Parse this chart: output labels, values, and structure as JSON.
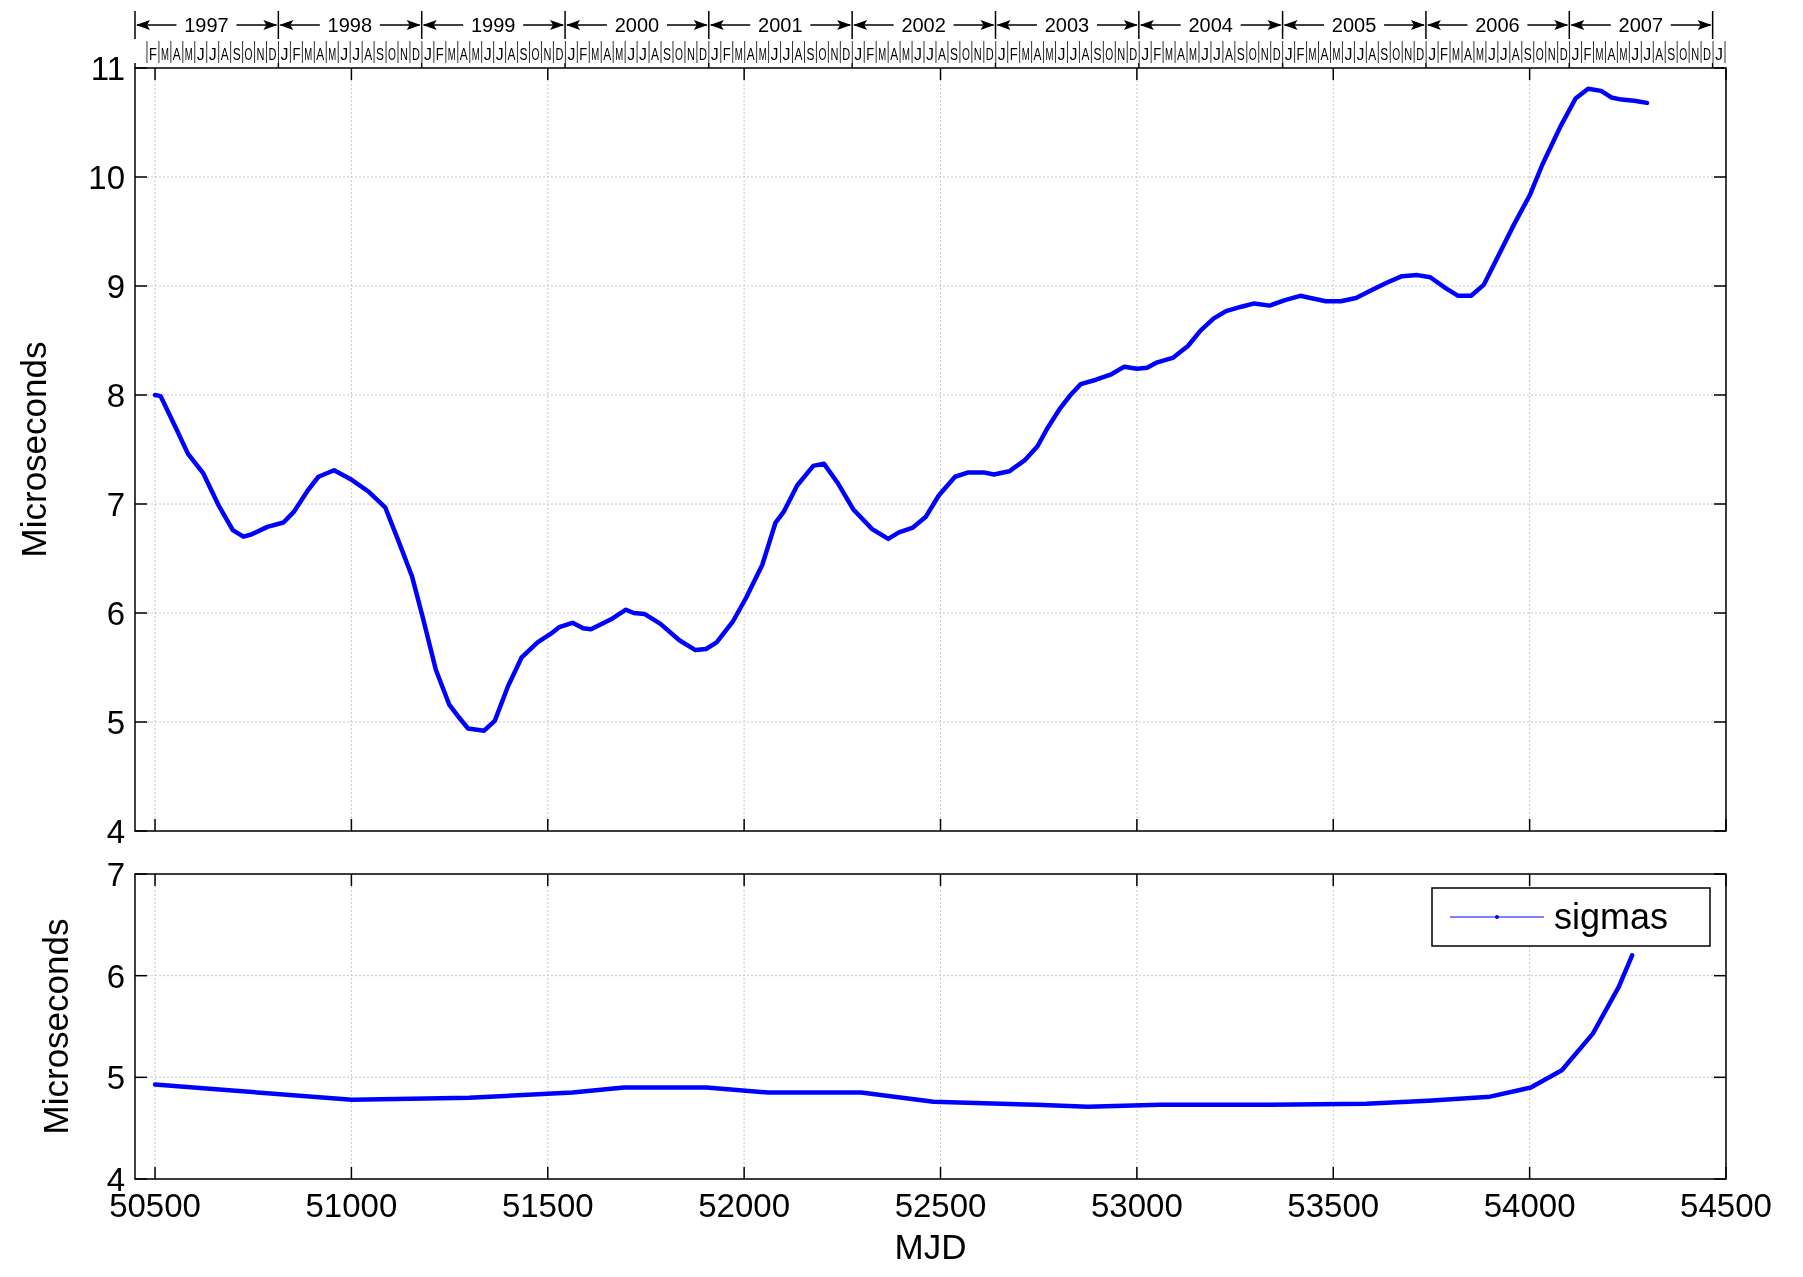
{
  "chart_data": [
    {
      "type": "other",
      "categories": [
        null,
        "F",
        "M",
        "A",
        "M",
        "J",
        "J",
        "A",
        "S",
        "O",
        "N",
        "D",
        "J",
        "F",
        "M",
        "A",
        "M",
        "J",
        "J",
        "A",
        "S",
        "O",
        "N",
        "D",
        "J",
        "F",
        "M",
        "A",
        "M",
        "J",
        "J",
        "A",
        "S",
        "O",
        "N",
        "D",
        "J",
        "F",
        "M",
        "A",
        "M",
        "J",
        "J",
        "A",
        "S",
        "O",
        "N",
        "D",
        "J",
        "F",
        "M",
        "A",
        "M",
        "J",
        "J",
        "A",
        "S",
        "O",
        "N",
        "D",
        "J",
        "F",
        "M",
        "A",
        "M",
        "J",
        "J",
        "A",
        "S",
        "O",
        "N",
        "D",
        "J",
        "F",
        "M",
        "A",
        "M",
        "J",
        "J",
        "A",
        "S",
        "O",
        "N",
        "D",
        "J",
        "F",
        "M",
        "A",
        "M",
        "J",
        "J",
        "A",
        "S",
        "O",
        "N",
        "D",
        "J",
        "F",
        "M",
        "A",
        "M",
        "J",
        "J",
        "A",
        "S",
        "O",
        "N",
        "D",
        "J",
        "F",
        "M",
        "A",
        "M",
        "J",
        "J",
        "A",
        "S",
        "O",
        "N",
        "D",
        "J",
        "F",
        "M",
        "A",
        "M",
        "J",
        "J",
        "A",
        "S",
        "O",
        "N",
        "D",
        "J"
      ]
    },
    {
      "type": "line",
      "ylabel": "Microseconds",
      "xlim": [
        50449,
        54500
      ],
      "xticks": [
        50500,
        51000,
        51500,
        52000,
        52500,
        53000,
        53500,
        54000,
        54500
      ],
      "ylim": [
        4,
        11
      ],
      "yticks": [
        4,
        5,
        6,
        7,
        8,
        9,
        10,
        11
      ],
      "grid": true,
      "tick_labels": "y",
      "x2lim": [
        "1997-01-01",
        "2008-02-04"
      ],
      "x2ticks": [
        {
          "value": "1997-01-01",
          "label": null
        },
        {
          "value": "1997-07-02",
          "label": "1997"
        },
        {
          "value": "1998-01-01",
          "label": null
        },
        {
          "value": "1998-07-02",
          "label": "1998"
        },
        {
          "value": "1999-01-01",
          "label": null
        },
        {
          "value": "1999-07-02",
          "label": "1999"
        },
        {
          "value": "2000-01-01",
          "label": null
        },
        {
          "value": "2000-07-02",
          "label": "2000"
        },
        {
          "value": "2001-01-01",
          "label": null
        },
        {
          "value": "2001-07-02",
          "label": "2001"
        },
        {
          "value": "2002-01-01",
          "label": null
        },
        {
          "value": "2002-07-02",
          "label": "2002"
        },
        {
          "value": "2003-01-01",
          "label": null
        },
        {
          "value": "2003-07-02",
          "label": "2003"
        },
        {
          "value": "2004-01-01",
          "label": null
        },
        {
          "value": "2004-07-02",
          "label": "2004"
        },
        {
          "value": "2005-01-01",
          "label": null
        },
        {
          "value": "2005-07-02",
          "label": "2005"
        },
        {
          "value": "2006-01-01",
          "label": null
        },
        {
          "value": "2006-07-02",
          "label": "2006"
        },
        {
          "value": "2007-01-01",
          "label": null
        },
        {
          "value": "2007-07-02",
          "label": "2007"
        },
        {
          "value": "2008-01-01",
          "label": null
        }
      ],
      "series": [
        {
          "color": "#0000ff",
          "x": [
            50500,
            50514,
            50554,
            50584,
            50623,
            50663,
            50698,
            50725,
            50745,
            50786,
            50827,
            50854,
            50888,
            50916,
            50956,
            50997,
            51045,
            51086,
            51120,
            51154,
            51181,
            51215,
            51249,
            51270,
            51297,
            51338,
            51365,
            51399,
            51433,
            51474,
            51508,
            51529,
            51563,
            51590,
            51610,
            51665,
            51699,
            51719,
            51747,
            51787,
            51835,
            51876,
            51903,
            51930,
            51971,
            52005,
            52046,
            52080,
            52101,
            52135,
            52176,
            52203,
            52237,
            52278,
            52326,
            52367,
            52394,
            52428,
            52462,
            52496,
            52537,
            52571,
            52610,
            52636,
            52675,
            52714,
            52747,
            52773,
            52805,
            52831,
            52857,
            52896,
            52935,
            52968,
            53000,
            53026,
            53052,
            53091,
            53130,
            53162,
            53195,
            53227,
            53266,
            53299,
            53338,
            53377,
            53416,
            53442,
            53481,
            53519,
            53558,
            53597,
            53636,
            53675,
            53714,
            53747,
            53786,
            53818,
            53851,
            53883,
            53922,
            53961,
            54000,
            54032,
            54078,
            54117,
            54149,
            54182,
            54208,
            54234,
            54266,
            54299
          ],
          "values": [
            8.0,
            7.99,
            7.69,
            7.46,
            7.28,
            6.98,
            6.76,
            6.7,
            6.72,
            6.79,
            6.83,
            6.93,
            7.12,
            7.25,
            7.31,
            7.23,
            7.11,
            6.97,
            6.66,
            6.34,
            5.97,
            5.48,
            5.16,
            5.06,
            4.94,
            4.92,
            5.01,
            5.33,
            5.59,
            5.73,
            5.81,
            5.87,
            5.91,
            5.86,
            5.85,
            5.95,
            6.03,
            6.0,
            5.99,
            5.9,
            5.75,
            5.66,
            5.67,
            5.73,
            5.92,
            6.14,
            6.44,
            6.83,
            6.93,
            7.17,
            7.35,
            7.37,
            7.2,
            6.95,
            6.77,
            6.68,
            6.74,
            6.78,
            6.88,
            7.08,
            7.25,
            7.29,
            7.29,
            7.27,
            7.3,
            7.4,
            7.53,
            7.7,
            7.88,
            8.0,
            8.1,
            8.14,
            8.19,
            8.26,
            8.24,
            8.25,
            8.3,
            8.34,
            8.45,
            8.59,
            8.7,
            8.77,
            8.81,
            8.84,
            8.82,
            8.87,
            8.91,
            8.89,
            8.86,
            8.86,
            8.89,
            8.96,
            9.03,
            9.09,
            9.1,
            9.08,
            8.98,
            8.91,
            8.91,
            9.01,
            9.29,
            9.57,
            9.83,
            10.11,
            10.46,
            10.72,
            10.81,
            10.79,
            10.73,
            10.71,
            10.7,
            10.68
          ]
        }
      ]
    },
    {
      "type": "line",
      "xlabel": "MJD",
      "ylabel": "Microseconds",
      "xlim": [
        50449,
        54500
      ],
      "xticks": [
        50500,
        51000,
        51500,
        52000,
        52500,
        53000,
        53500,
        54000,
        54500
      ],
      "ylim": [
        4,
        7
      ],
      "yticks": [
        4,
        5,
        6,
        7
      ],
      "grid": true,
      "legend": "top right",
      "series": [
        {
          "name": "sigmas",
          "color": "#0000ff",
          "x": [
            50500,
            50697,
            51001,
            51300,
            51563,
            51694,
            51904,
            52062,
            52298,
            52482,
            52744,
            52875,
            53059,
            53322,
            53584,
            53741,
            53899,
            54003,
            54082,
            54161,
            54227,
            54261
          ],
          "values": [
            4.93,
            4.87,
            4.78,
            4.8,
            4.85,
            4.9,
            4.9,
            4.85,
            4.85,
            4.76,
            4.73,
            4.71,
            4.73,
            4.73,
            4.74,
            4.77,
            4.81,
            4.9,
            5.07,
            5.43,
            5.89,
            6.2
          ]
        }
      ]
    }
  ]
}
